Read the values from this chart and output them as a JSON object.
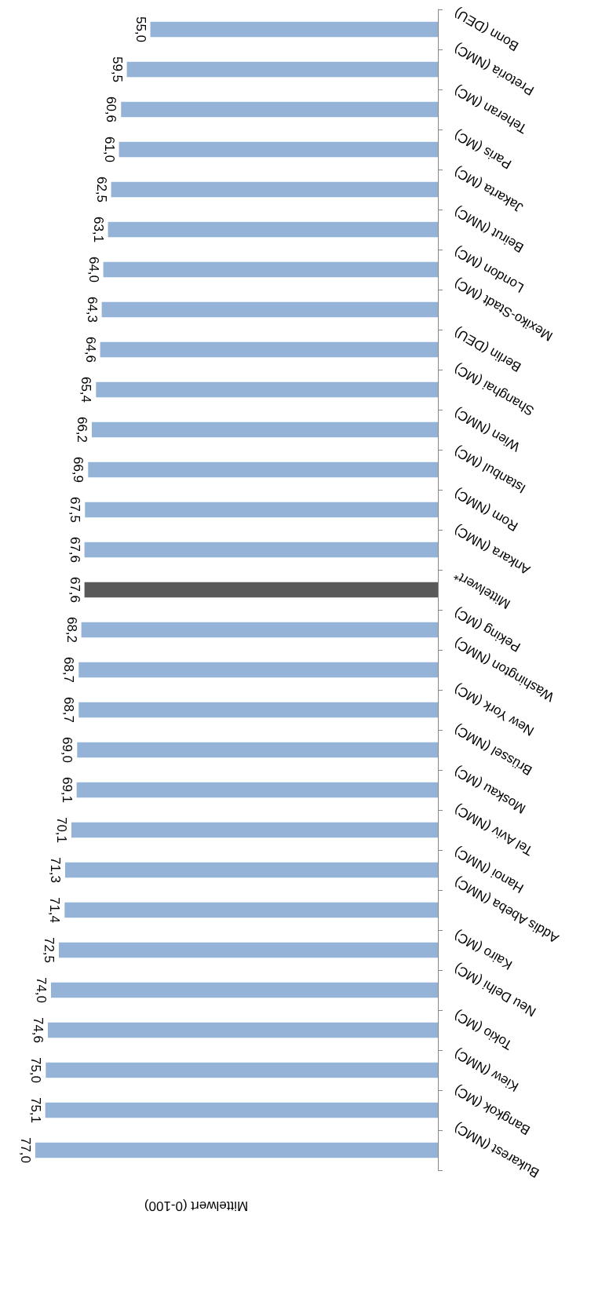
{
  "chart_data": {
    "type": "bar",
    "orientation": "horizontal",
    "xlabel": "Mittelwert (0-100)",
    "categories": [
      "Bonn (DEU)",
      "Pretoria (NMC)",
      "Teheran (MC)",
      "Paris (MC)",
      "Jakarta (MC)",
      "Beirut (NMC)",
      "London (MC)",
      "Mexiko-Stadt (MC)",
      "Berlin (DEU)",
      "Shanghai (MC)",
      "Wien (NMC)",
      "Istanbul (MC)",
      "Rom (NMC)",
      "Ankara (NMC)",
      "Mittelwert*",
      "Peking (MC)",
      "Washington (NMC)",
      "New York (MC)",
      "Brüssel (NMC)",
      "Moskau (MC)",
      "Tel Aviv (NMC)",
      "Hanoi (NMC)",
      "Addis Abeba (NMC)",
      "Kairo (MC)",
      "Neu Delhi (MC)",
      "Tokio (MC)",
      "Kiew (NMC)",
      "Bangkok (MC)",
      "Bukarest (NMC)"
    ],
    "values": [
      55.0,
      59.5,
      60.6,
      61.0,
      62.5,
      63.1,
      64.0,
      64.3,
      64.6,
      65.4,
      66.2,
      66.9,
      67.5,
      67.6,
      67.6,
      68.2,
      68.7,
      68.7,
      69.0,
      69.1,
      70.1,
      71.3,
      71.4,
      72.5,
      74.0,
      74.6,
      75.0,
      75.1,
      77.0
    ],
    "value_labels": [
      "55,0",
      "59,5",
      "60,6",
      "61,0",
      "62,5",
      "63,1",
      "64,0",
      "64,3",
      "64,6",
      "65,4",
      "66,2",
      "66,9",
      "67,5",
      "67,6",
      "67,6",
      "68,2",
      "68,7",
      "68,7",
      "69,0",
      "69,1",
      "70,1",
      "71,3",
      "71,4",
      "72,5",
      "74,0",
      "74,6",
      "75,0",
      "75,1",
      "77,0"
    ],
    "colors": [
      "#95b3d7",
      "#95b3d7",
      "#95b3d7",
      "#95b3d7",
      "#95b3d7",
      "#95b3d7",
      "#95b3d7",
      "#95b3d7",
      "#95b3d7",
      "#95b3d7",
      "#95b3d7",
      "#95b3d7",
      "#95b3d7",
      "#95b3d7",
      "#595959",
      "#95b3d7",
      "#95b3d7",
      "#95b3d7",
      "#95b3d7",
      "#95b3d7",
      "#95b3d7",
      "#95b3d7",
      "#95b3d7",
      "#95b3d7",
      "#95b3d7",
      "#95b3d7",
      "#95b3d7",
      "#95b3d7",
      "#95b3d7"
    ]
  }
}
